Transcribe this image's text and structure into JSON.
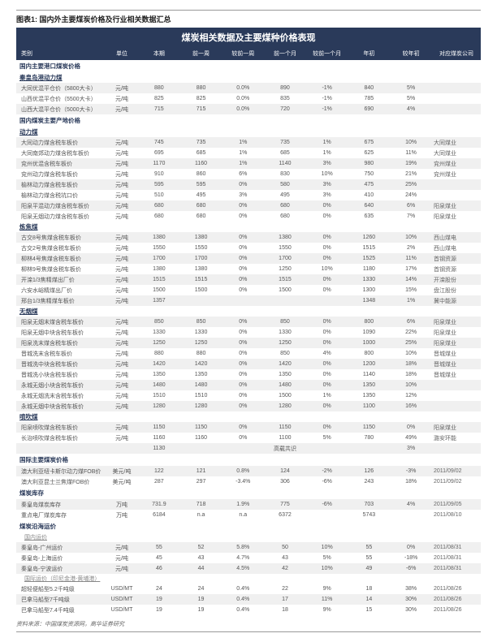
{
  "figure_title": "图表1: 国内外主要煤炭价格及行业相关数据汇总",
  "main_title": "煤炭相关数据及主要煤种价格表现",
  "headers": [
    "类别",
    "单位",
    "本期",
    "前一周",
    "较前一周",
    "前一个月",
    "较前一个月",
    "年初",
    "较年初",
    "对应煤炭公司"
  ],
  "sections": [
    {
      "label": "国内主要港口煤炭价格",
      "type": "section"
    },
    {
      "label": "秦皇岛港动力煤",
      "type": "sub"
    },
    {
      "rows": [
        [
          "大同优混平仓价（5800大卡）",
          "元/吨",
          "880",
          "880",
          "0.0%",
          "890",
          "-1%",
          "840",
          "5%",
          ""
        ],
        [
          "山西优混平仓价（5500大卡）",
          "元/吨",
          "825",
          "825",
          "0.0%",
          "835",
          "-1%",
          "785",
          "5%",
          ""
        ],
        [
          "山西大混平仓价（5000大卡）",
          "元/吨",
          "715",
          "715",
          "0.0%",
          "720",
          "-1%",
          "690",
          "4%",
          ""
        ]
      ]
    },
    {
      "label": "国内煤炭主要产地价格",
      "type": "section"
    },
    {
      "label": "动力煤",
      "type": "sub"
    },
    {
      "rows": [
        [
          "大同动力煤含税车板价",
          "元/吨",
          "745",
          "735",
          "1%",
          "735",
          "1%",
          "675",
          "10%",
          "大同煤业"
        ],
        [
          "大同南郊动力煤含税车板价",
          "元/吨",
          "695",
          "685",
          "1%",
          "685",
          "1%",
          "625",
          "11%",
          "大同煤业"
        ],
        [
          "兖州优混含税车板价",
          "元/吨",
          "1170",
          "1160",
          "1%",
          "1140",
          "3%",
          "980",
          "19%",
          "兖州煤业"
        ],
        [
          "兖州动力煤含税车板价",
          "元/吨",
          "910",
          "860",
          "6%",
          "830",
          "10%",
          "750",
          "21%",
          "兖州煤业"
        ],
        [
          "榆林动力煤含税车板价",
          "元/吨",
          "595",
          "595",
          "0%",
          "580",
          "3%",
          "475",
          "25%",
          ""
        ],
        [
          "榆林动力煤含税坑口价",
          "元/吨",
          "510",
          "495",
          "3%",
          "495",
          "3%",
          "410",
          "24%",
          ""
        ],
        [
          "阳泉平混动力煤含税车板价",
          "元/吨",
          "680",
          "680",
          "0%",
          "680",
          "0%",
          "640",
          "6%",
          "阳泉煤业"
        ],
        [
          "阳泉无烟动力煤含税车板价",
          "元/吨",
          "680",
          "680",
          "0%",
          "680",
          "0%",
          "635",
          "7%",
          "阳泉煤业"
        ]
      ]
    },
    {
      "label": "炼焦煤",
      "type": "sub"
    },
    {
      "rows": [
        [
          "古交8号焦煤含税车板价",
          "元/吨",
          "1380",
          "1380",
          "0%",
          "1380",
          "0%",
          "1260",
          "10%",
          "西山煤电"
        ],
        [
          "古交2号焦煤含税车板价",
          "元/吨",
          "1550",
          "1550",
          "0%",
          "1550",
          "0%",
          "1515",
          "2%",
          "西山煤电"
        ],
        [
          "柳林4号焦煤含税车板价",
          "元/吨",
          "1700",
          "1700",
          "0%",
          "1700",
          "0%",
          "1525",
          "11%",
          "首钢资源"
        ],
        [
          "柳林9号焦煤含税车板价",
          "元/吨",
          "1380",
          "1380",
          "0%",
          "1250",
          "10%",
          "1180",
          "17%",
          "首钢资源"
        ],
        [
          "开滦1/3焦精煤出厂价",
          "元/吨",
          "1515",
          "1515",
          "0%",
          "1515",
          "0%",
          "1330",
          "14%",
          "开滦股份"
        ],
        [
          "六安水峪精煤出厂价",
          "元/吨",
          "1500",
          "1500",
          "0%",
          "1500",
          "0%",
          "1300",
          "15%",
          "盘江股份"
        ],
        [
          "邢台1/3焦精煤车板价",
          "元/吨",
          "1357",
          "",
          "",
          "",
          "",
          "1348",
          "1%",
          "冀中能源"
        ]
      ]
    },
    {
      "label": "无烟煤",
      "type": "sub"
    },
    {
      "rows": [
        [
          "阳泉无烟末煤含税车板价",
          "元/吨",
          "850",
          "850",
          "0%",
          "850",
          "0%",
          "800",
          "6%",
          "阳泉煤业"
        ],
        [
          "阳泉无烟中块含税车板价",
          "元/吨",
          "1330",
          "1330",
          "0%",
          "1330",
          "0%",
          "1090",
          "22%",
          "阳泉煤业"
        ],
        [
          "阳泉洗末煤含税车板价",
          "元/吨",
          "1250",
          "1250",
          "0%",
          "1250",
          "0%",
          "1000",
          "25%",
          "阳泉煤业"
        ],
        [
          "晋城洗末含税车板价",
          "元/吨",
          "880",
          "880",
          "0%",
          "850",
          "4%",
          "800",
          "10%",
          "晋城煤业"
        ],
        [
          "晋城洗中块含税车板价",
          "元/吨",
          "1420",
          "1420",
          "0%",
          "1420",
          "0%",
          "1200",
          "18%",
          "晋城煤业"
        ],
        [
          "晋城洗小块含税车板价",
          "元/吨",
          "1350",
          "1350",
          "0%",
          "1350",
          "0%",
          "1140",
          "18%",
          "晋城煤业"
        ],
        [
          "永城无烟小块含税车板价",
          "元/吨",
          "1480",
          "1480",
          "0%",
          "1480",
          "0%",
          "1350",
          "10%",
          ""
        ],
        [
          "永城无烟洗末含税车板价",
          "元/吨",
          "1510",
          "1510",
          "0%",
          "1500",
          "1%",
          "1350",
          "12%",
          ""
        ],
        [
          "永城无烟中块含税车板价",
          "元/吨",
          "1280",
          "1280",
          "0%",
          "1280",
          "0%",
          "1100",
          "16%",
          ""
        ]
      ]
    },
    {
      "label": "喷吹煤",
      "type": "sub"
    },
    {
      "rows": [
        [
          "阳泉喷吹煤含税车板价",
          "元/吨",
          "1150",
          "1150",
          "0%",
          "1150",
          "0%",
          "1150",
          "0%",
          "阳泉煤业"
        ],
        [
          "长治喷吹煤含税车板价",
          "元/吨",
          "1160",
          "1160",
          "0%",
          "1100",
          "5%",
          "780",
          "49%",
          "潞安环能"
        ],
        [
          "",
          "",
          "1130",
          "",
          "",
          "高载共识",
          "",
          "",
          "3%",
          ""
        ]
      ]
    },
    {
      "label": "国际主要煤炭价格",
      "type": "section"
    },
    {
      "rows": [
        [
          "澳大利亚纽卡斯尔动力煤FOB价",
          "美元/吨",
          "122",
          "121",
          "0.8%",
          "124",
          "-2%",
          "126",
          "-3%",
          "2011/09/02"
        ],
        [
          "澳大利亚昆士兰焦煤FOB价",
          "美元/吨",
          "287",
          "297",
          "-3.4%",
          "306",
          "-6%",
          "243",
          "18%",
          "2011/09/02"
        ]
      ]
    },
    {
      "label": "煤炭库存",
      "type": "section"
    },
    {
      "rows": [
        [
          "秦皇岛煤炭库存",
          "万吨",
          "731.9",
          "718",
          "1.9%",
          "775",
          "-6%",
          "703",
          "4%",
          "2011/09/05"
        ],
        [
          "重点电厂煤炭库存",
          "万吨",
          "6184",
          "n.a",
          "n.a",
          "6372",
          "",
          "5743",
          "",
          "2011/08/10"
        ]
      ]
    },
    {
      "label": "煤炭沿海运价",
      "type": "section"
    },
    {
      "label": "国内运价",
      "type": "sub2"
    },
    {
      "rows": [
        [
          "秦皇岛-广州运价",
          "元/吨",
          "55",
          "52",
          "5.8%",
          "50",
          "10%",
          "55",
          "0%",
          "2011/08/31"
        ],
        [
          "秦皇岛-上海运价",
          "元/吨",
          "45",
          "43",
          "4.7%",
          "43",
          "5%",
          "55",
          "-18%",
          "2011/08/31"
        ],
        [
          "秦皇岛-宁波运价",
          "元/吨",
          "46",
          "44",
          "4.5%",
          "42",
          "10%",
          "49",
          "-6%",
          "2011/08/31"
        ]
      ]
    },
    {
      "label": "国际运价（印尼金港-黄埔港）",
      "type": "sub2"
    },
    {
      "rows": [
        [
          "超轻便船型5.2千吨级",
          "USD/MT",
          "24",
          "24",
          "0.4%",
          "22",
          "9%",
          "18",
          "38%",
          "2011/08/26"
        ],
        [
          "巴拿马船型7千吨级",
          "USD/MT",
          "19",
          "19",
          "0.4%",
          "17",
          "11%",
          "14",
          "30%",
          "2011/08/26"
        ],
        [
          "巴拿马船型7.4千吨级",
          "USD/MT",
          "19",
          "19",
          "0.4%",
          "18",
          "9%",
          "15",
          "30%",
          "2011/08/26"
        ]
      ]
    }
  ],
  "source": "资料来源：中国煤炭资源网，高华证券研究"
}
